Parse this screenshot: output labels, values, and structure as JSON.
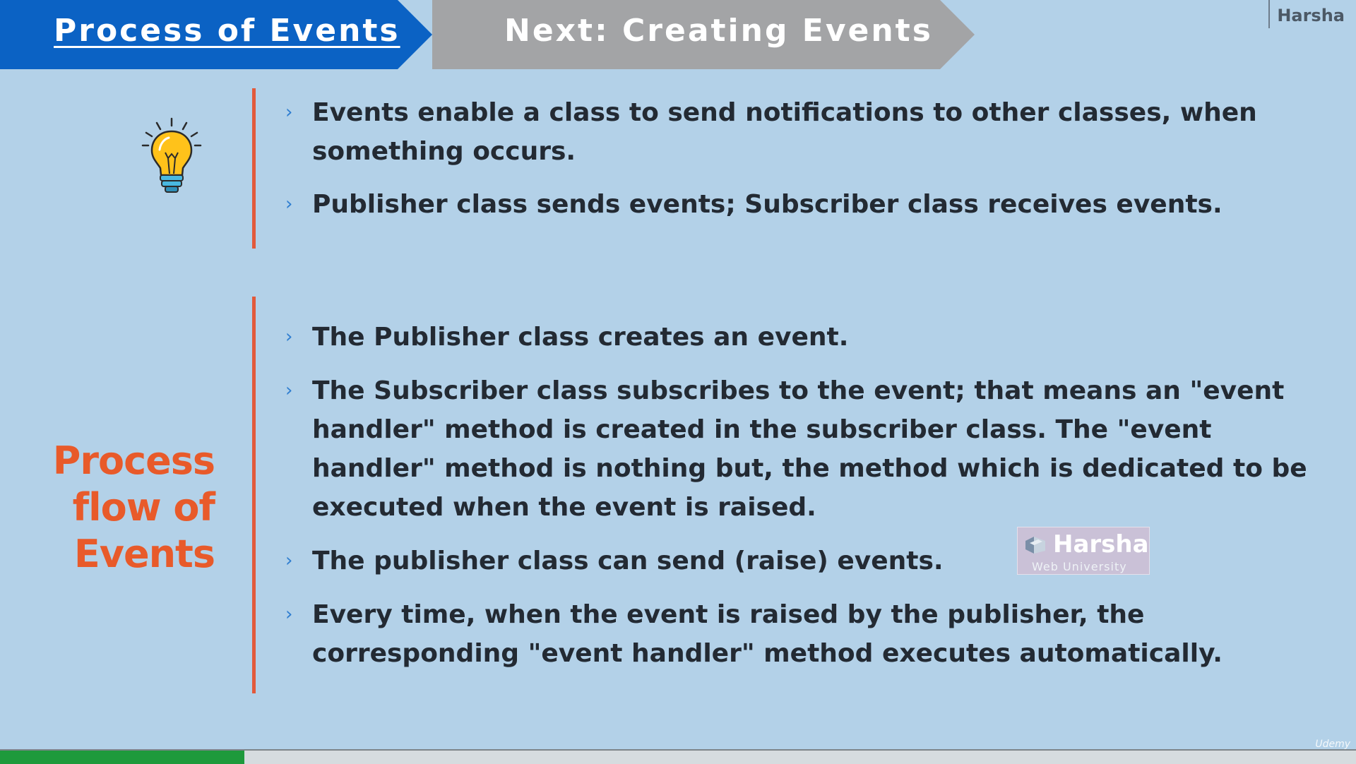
{
  "header": {
    "current_tab": "Process of Events",
    "next_tab": "Next: Creating Events",
    "brand": "Harsha"
  },
  "intro": {
    "icon": "lightbulb-icon",
    "bullets": [
      "Events enable a class to send notifications to other classes, when something occurs.",
      "Publisher class sends events; Subscriber class receives events."
    ]
  },
  "process": {
    "title": "Process flow of Events",
    "bullets": [
      "The Publisher class creates an event.",
      "The Subscriber class subscribes to the event; that means an \"event handler\" method is created in the subscriber class. The \"event handler\" method is nothing but, the method which is dedicated to be executed when the event is raised.",
      "The publisher class can send (raise) events.",
      "Every time, when the event is raised by the publisher, the corresponding \"event handler\" method executes automatically."
    ]
  },
  "watermark": {
    "name": "Harsha",
    "subtitle": "Web University"
  },
  "progress": {
    "fraction": 0.18
  },
  "platform": "Udemy",
  "colors": {
    "active_tab": "#0b62c4",
    "next_tab": "#a3a4a6",
    "accent_line": "#e2593b",
    "section_title": "#e85a2a",
    "background": "#b3d1e8",
    "progress_fill": "#1e9a3c"
  }
}
